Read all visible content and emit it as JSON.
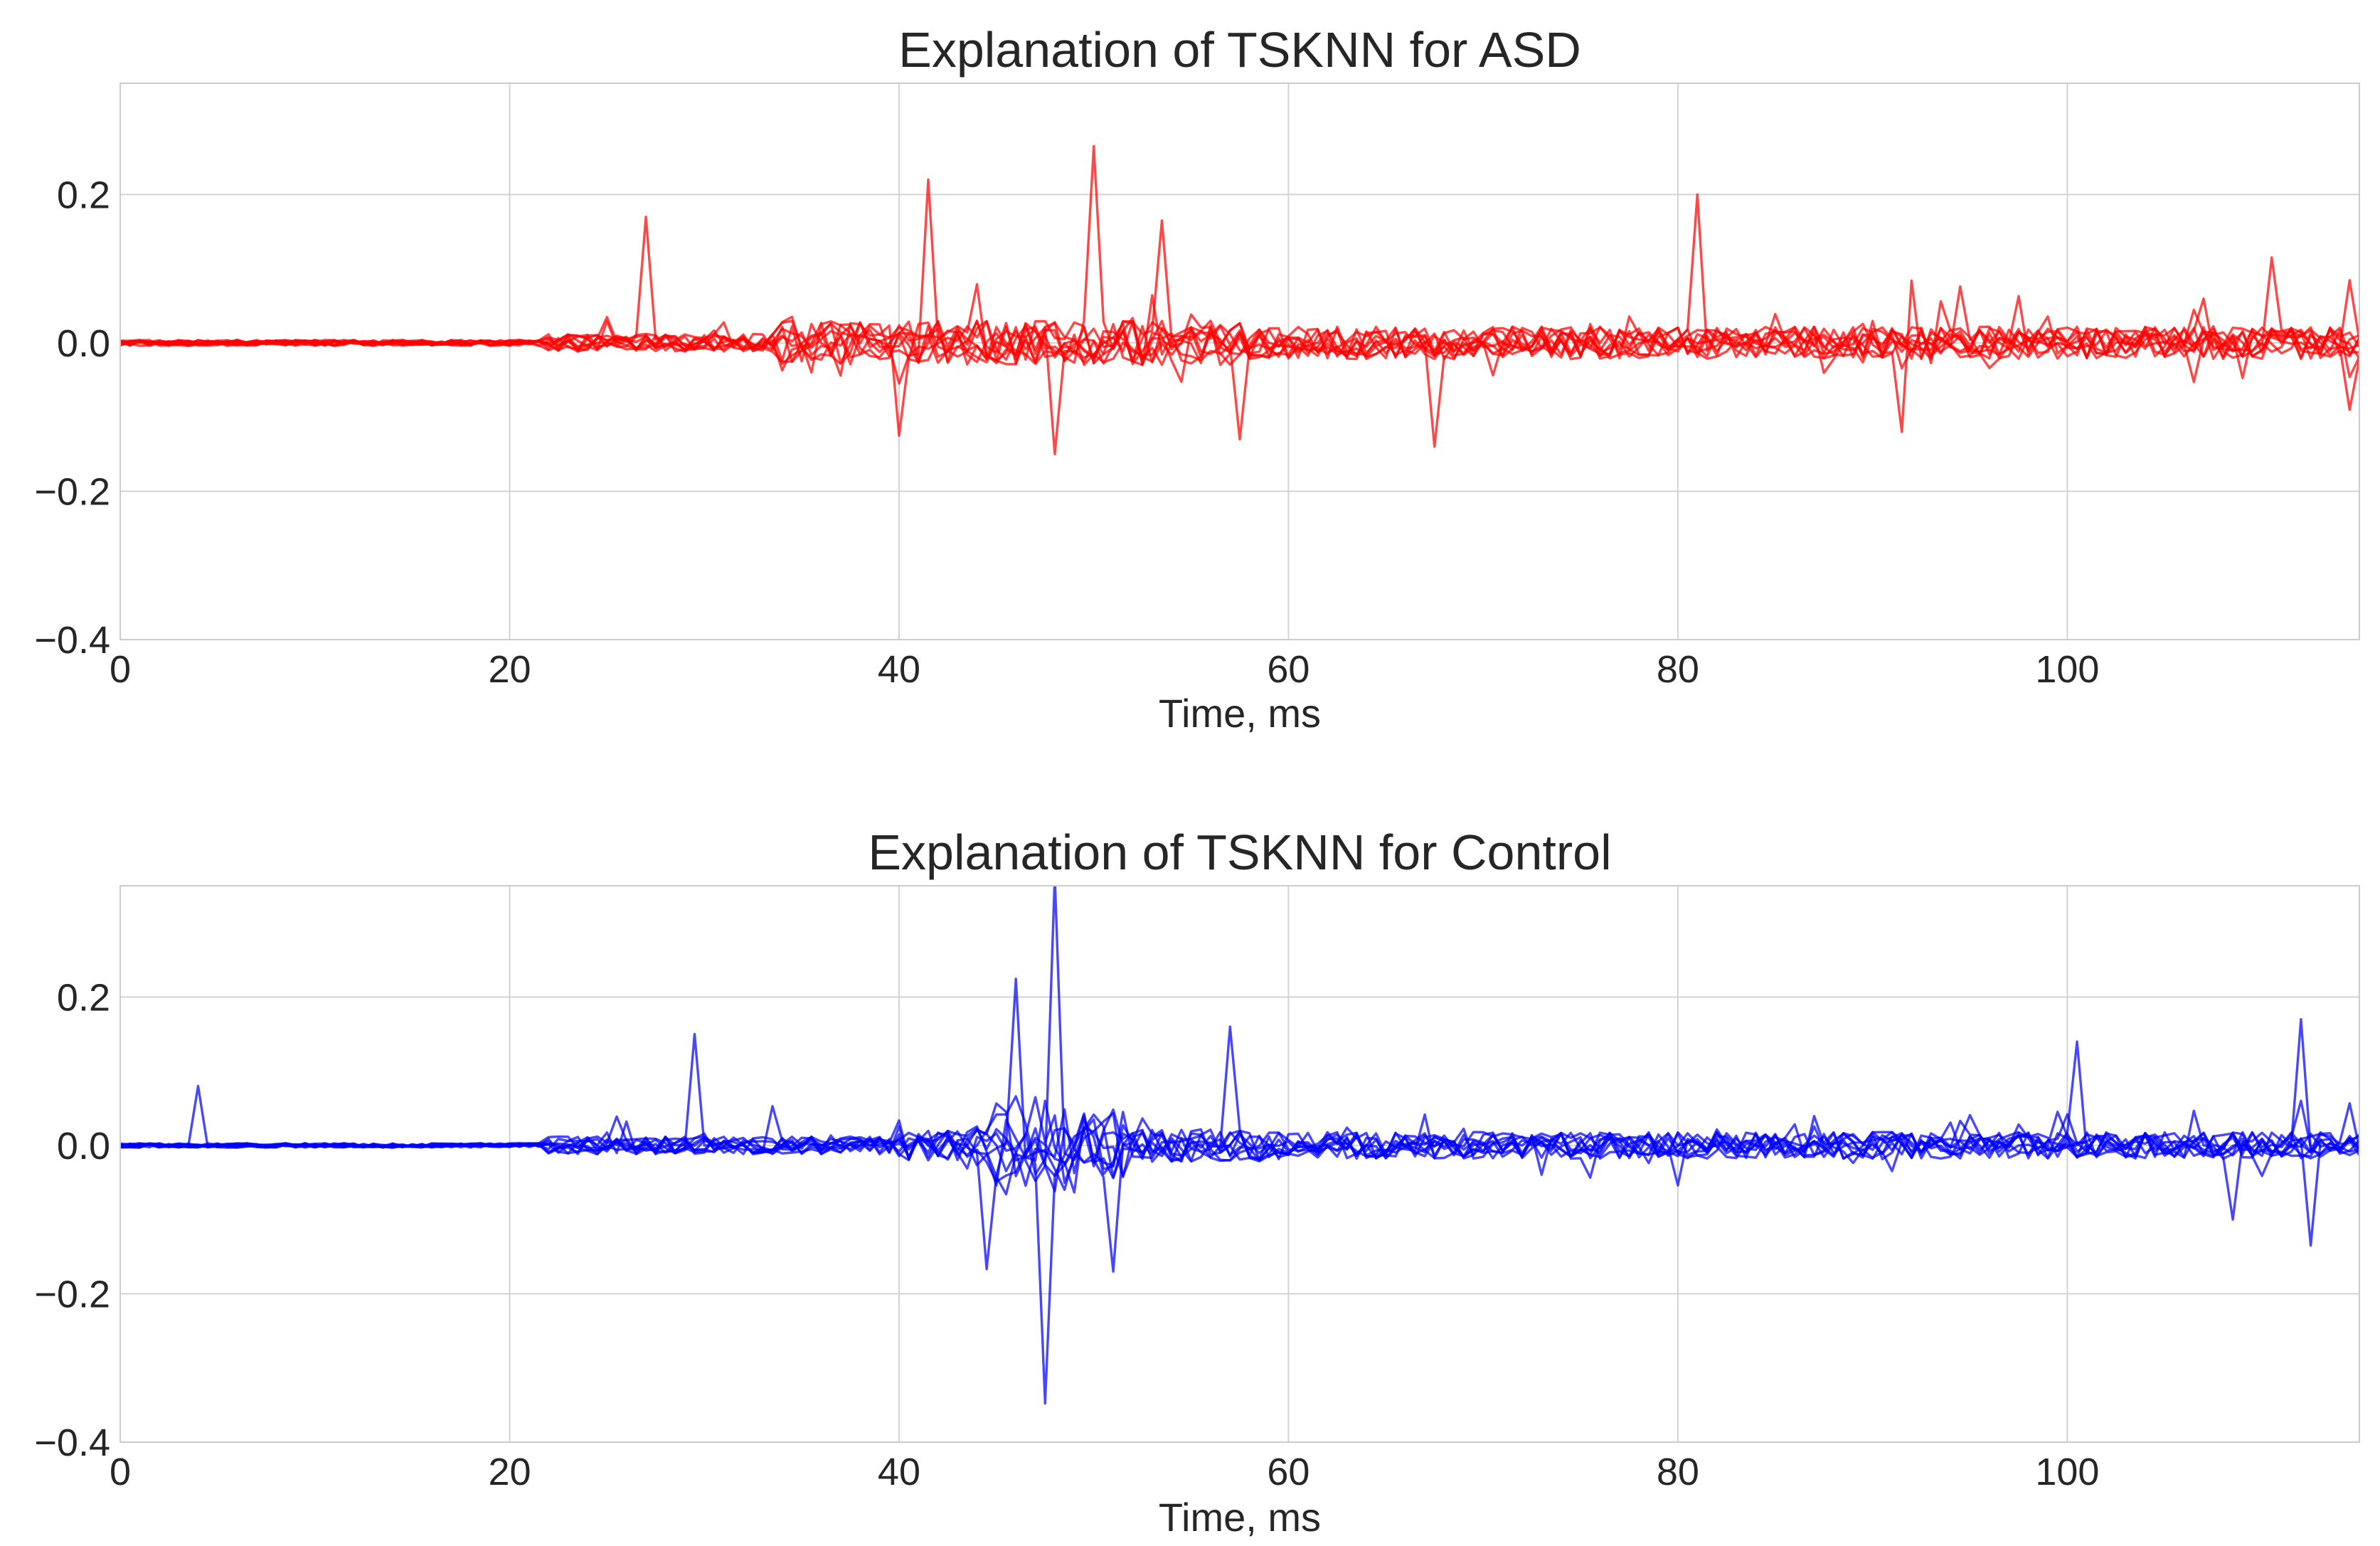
{
  "chart_data": [
    {
      "type": "line",
      "title": "Explanation of TSKNN for ASD",
      "xlabel": "Time, ms",
      "ylabel": "",
      "xlim": [
        0,
        115
      ],
      "ylim": [
        -0.4,
        0.35
      ],
      "xticks": [
        0,
        20,
        40,
        60,
        80,
        100
      ],
      "yticks": [
        -0.4,
        -0.2,
        0.0,
        0.2
      ],
      "xtick_labels": [
        "0",
        "20",
        "40",
        "60",
        "80",
        "100"
      ],
      "ytick_labels": [
        "−0.4",
        "−0.2",
        "0.0",
        "0.2"
      ],
      "grid": true,
      "color": "#ff0000",
      "n_series": 10,
      "series_note": "10 overlapping explanation traces, one point per ms from 0 to 115",
      "peaks": [
        {
          "x": 27,
          "y": 0.17
        },
        {
          "x": 40,
          "y": -0.125
        },
        {
          "x": 41.5,
          "y": 0.22
        },
        {
          "x": 48,
          "y": -0.15
        },
        {
          "x": 50,
          "y": 0.265
        },
        {
          "x": 53.5,
          "y": 0.165
        },
        {
          "x": 57.5,
          "y": -0.13
        },
        {
          "x": 67.5,
          "y": -0.14
        },
        {
          "x": 81,
          "y": 0.2
        },
        {
          "x": 91.5,
          "y": -0.12
        },
        {
          "x": 110.5,
          "y": 0.115
        },
        {
          "x": 114.5,
          "y": -0.09
        }
      ]
    },
    {
      "type": "line",
      "title": "Explanation of TSKNN for Control",
      "xlabel": "Time, ms",
      "ylabel": "",
      "xlim": [
        0,
        115
      ],
      "ylim": [
        -0.4,
        0.35
      ],
      "xticks": [
        0,
        20,
        40,
        60,
        80,
        100
      ],
      "yticks": [
        -0.4,
        -0.2,
        0.0,
        0.2
      ],
      "xtick_labels": [
        "0",
        "20",
        "40",
        "60",
        "80",
        "100"
      ],
      "ytick_labels": [
        "−0.4",
        "−0.2",
        "0.0",
        "0.2"
      ],
      "grid": true,
      "color": "#0000ff",
      "n_series": 10,
      "series_note": "10 overlapping explanation traces, one point per ms from 0 to 115",
      "peaks": [
        {
          "x": 4,
          "y": 0.08
        },
        {
          "x": 29.5,
          "y": 0.15
        },
        {
          "x": 44.5,
          "y": -0.155
        },
        {
          "x": 46,
          "y": 0.195
        },
        {
          "x": 47.5,
          "y": -0.315
        },
        {
          "x": 48,
          "y": 0.35
        },
        {
          "x": 51,
          "y": -0.17
        },
        {
          "x": 57,
          "y": 0.16
        },
        {
          "x": 100.5,
          "y": 0.14
        },
        {
          "x": 108.5,
          "y": -0.1
        },
        {
          "x": 112,
          "y": 0.17
        },
        {
          "x": 112.5,
          "y": -0.135
        }
      ]
    }
  ]
}
